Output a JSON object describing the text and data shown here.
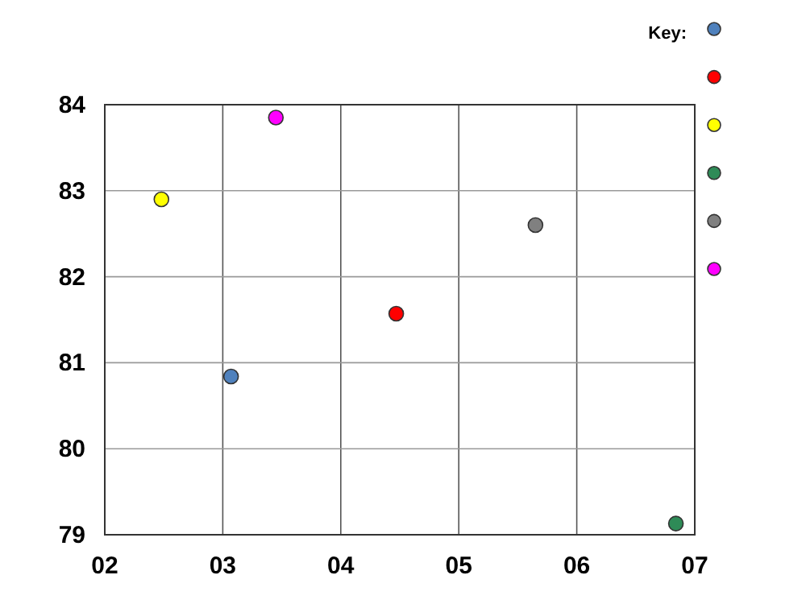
{
  "chart_data": {
    "type": "scatter",
    "legend_title": "Key:",
    "grid": true,
    "marker": "circle",
    "xlim": [
      2,
      7
    ],
    "xticks": [
      {
        "value": 2,
        "label": "02"
      },
      {
        "value": 3,
        "label": "03"
      },
      {
        "value": 4,
        "label": "04"
      },
      {
        "value": 5,
        "label": "05"
      },
      {
        "value": 6,
        "label": "06"
      },
      {
        "value": 7,
        "label": "07"
      }
    ],
    "ylim": [
      79,
      84
    ],
    "yticks": [
      79,
      80,
      81,
      82,
      83,
      84
    ],
    "series": [
      {
        "color": "#4f81bd",
        "x": [
          3.07
        ],
        "values": [
          80.84
        ]
      },
      {
        "color": "#ff0000",
        "x": [
          4.47
        ],
        "values": [
          81.57
        ]
      },
      {
        "color": "#ffff00",
        "x": [
          2.48
        ],
        "values": [
          82.9
        ]
      },
      {
        "color": "#2e8b57",
        "x": [
          6.84
        ],
        "values": [
          79.13
        ]
      },
      {
        "color": "#808080",
        "x": [
          5.65
        ],
        "values": [
          82.6
        ]
      },
      {
        "color": "#ff00ff",
        "x": [
          3.45
        ],
        "values": [
          83.85
        ]
      }
    ]
  }
}
